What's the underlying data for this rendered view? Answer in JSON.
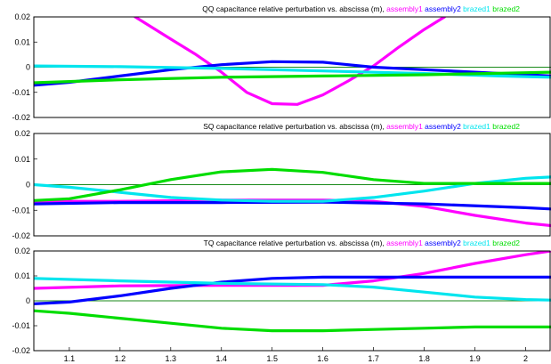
{
  "chart_data": [
    {
      "type": "line",
      "title": "QQ capacitance relative perturbation vs. abscissa (m),",
      "xlim": [
        1.03,
        2.05
      ],
      "ylim": [
        -0.02,
        0.02
      ],
      "yticks": [
        -0.02,
        -0.01,
        0,
        0.01,
        0.02
      ],
      "ytick_labels": [
        "-0.02",
        "-0.01",
        "0",
        "0.01",
        "0.02"
      ],
      "reference_line": 0,
      "series": [
        {
          "name": "assembly1",
          "color": "#ff00ff",
          "x": [
            1.23,
            1.3,
            1.35,
            1.4,
            1.45,
            1.5,
            1.55,
            1.6,
            1.65,
            1.7,
            1.75,
            1.8,
            1.84
          ],
          "y": [
            0.02,
            0.0112,
            0.005,
            -0.002,
            -0.01,
            -0.0145,
            -0.0148,
            -0.011,
            -0.0055,
            0.0005,
            0.008,
            0.015,
            0.02
          ]
        },
        {
          "name": "assembly2",
          "color": "#0000ff",
          "x": [
            1.03,
            1.1,
            1.2,
            1.3,
            1.4,
            1.5,
            1.6,
            1.7,
            1.8,
            1.9,
            2.0,
            2.05
          ],
          "y": [
            -0.0072,
            -0.006,
            -0.0035,
            -0.001,
            0.001,
            0.0022,
            0.002,
            0.0,
            -0.001,
            -0.002,
            -0.003,
            -0.0035
          ]
        },
        {
          "name": "brazed1",
          "color": "#00e5ee",
          "x": [
            1.03,
            1.2,
            1.4,
            1.6,
            1.8,
            1.95,
            2.05
          ],
          "y": [
            0.0005,
            0.0002,
            -0.0005,
            -0.0015,
            -0.0025,
            -0.0035,
            -0.004
          ]
        },
        {
          "name": "brazed2",
          "color": "#00dd00",
          "x": [
            1.03,
            1.2,
            1.4,
            1.6,
            1.8,
            2.0,
            2.05
          ],
          "y": [
            -0.0062,
            -0.005,
            -0.004,
            -0.0035,
            -0.003,
            -0.0022,
            -0.002
          ]
        }
      ]
    },
    {
      "type": "line",
      "title": "SQ capacitance relative perturbation vs. abscissa (m),",
      "xlim": [
        1.03,
        2.05
      ],
      "ylim": [
        -0.02,
        0.02
      ],
      "yticks": [
        -0.02,
        -0.01,
        0,
        0.01,
        0.02
      ],
      "ytick_labels": [
        "-0.02",
        "-0.01",
        "0",
        "0.01",
        "0.02"
      ],
      "reference_line": 0,
      "series": [
        {
          "name": "assembly1",
          "color": "#ff00ff",
          "x": [
            1.03,
            1.2,
            1.4,
            1.6,
            1.7,
            1.8,
            1.9,
            2.0,
            2.05
          ],
          "y": [
            -0.0065,
            -0.0065,
            -0.006,
            -0.006,
            -0.0065,
            -0.0085,
            -0.012,
            -0.015,
            -0.016
          ]
        },
        {
          "name": "assembly2",
          "color": "#0000ff",
          "x": [
            1.03,
            1.2,
            1.4,
            1.6,
            1.8,
            2.0,
            2.05
          ],
          "y": [
            -0.0075,
            -0.007,
            -0.007,
            -0.0068,
            -0.0075,
            -0.009,
            -0.0095
          ]
        },
        {
          "name": "brazed1",
          "color": "#00e5ee",
          "x": [
            1.03,
            1.1,
            1.2,
            1.3,
            1.4,
            1.5,
            1.6,
            1.7,
            1.8,
            1.9,
            2.0,
            2.05
          ],
          "y": [
            0.0,
            -0.001,
            -0.003,
            -0.005,
            -0.006,
            -0.0065,
            -0.0065,
            -0.005,
            -0.0025,
            0.0005,
            0.0025,
            0.003
          ]
        },
        {
          "name": "brazed2",
          "color": "#00dd00",
          "x": [
            1.03,
            1.1,
            1.2,
            1.3,
            1.4,
            1.5,
            1.6,
            1.7,
            1.8,
            1.9,
            2.0,
            2.05
          ],
          "y": [
            -0.0062,
            -0.0055,
            -0.002,
            0.002,
            0.005,
            0.006,
            0.0048,
            0.002,
            0.0005,
            0.0005,
            0.0005,
            0.0005
          ]
        }
      ]
    },
    {
      "type": "line",
      "title": "TQ capacitance relative perturbation vs. abscissa (m),",
      "xlim": [
        1.03,
        2.05
      ],
      "ylim": [
        -0.02,
        0.02
      ],
      "yticks": [
        -0.02,
        -0.01,
        0,
        0.01,
        0.02
      ],
      "ytick_labels": [
        "-0.02",
        "-0.01",
        "0",
        "0.01",
        "0.02"
      ],
      "xticks": [
        1.1,
        1.2,
        1.3,
        1.4,
        1.5,
        1.6,
        1.7,
        1.8,
        1.9,
        2
      ],
      "xtick_labels": [
        "1.1",
        "1.2",
        "1.3",
        "1.4",
        "1.5",
        "1.6",
        "1.7",
        "1.8",
        "1.9",
        "2"
      ],
      "reference_line": 0,
      "series": [
        {
          "name": "assembly1",
          "color": "#ff00ff",
          "x": [
            1.03,
            1.2,
            1.4,
            1.6,
            1.7,
            1.8,
            1.9,
            2.0,
            2.05
          ],
          "y": [
            0.005,
            0.006,
            0.0062,
            0.0062,
            0.008,
            0.011,
            0.015,
            0.0185,
            0.02
          ]
        },
        {
          "name": "assembly2",
          "color": "#0000ff",
          "x": [
            1.03,
            1.1,
            1.2,
            1.3,
            1.4,
            1.5,
            1.6,
            1.7,
            1.8,
            1.9,
            2.0,
            2.05
          ],
          "y": [
            -0.0012,
            -0.0005,
            0.002,
            0.005,
            0.0075,
            0.009,
            0.0095,
            0.0095,
            0.0095,
            0.0095,
            0.0095,
            0.0095
          ]
        },
        {
          "name": "brazed1",
          "color": "#00e5ee",
          "x": [
            1.03,
            1.2,
            1.4,
            1.6,
            1.7,
            1.8,
            1.9,
            2.0,
            2.05
          ],
          "y": [
            0.009,
            0.008,
            0.007,
            0.0065,
            0.0055,
            0.0035,
            0.0015,
            0.0005,
            0.0003
          ]
        },
        {
          "name": "brazed2",
          "color": "#00dd00",
          "x": [
            1.03,
            1.1,
            1.2,
            1.3,
            1.4,
            1.5,
            1.6,
            1.7,
            1.8,
            1.9,
            2.0,
            2.05
          ],
          "y": [
            -0.004,
            -0.005,
            -0.007,
            -0.009,
            -0.011,
            -0.012,
            -0.012,
            -0.0115,
            -0.011,
            -0.0105,
            -0.0105,
            -0.0105
          ]
        }
      ]
    }
  ]
}
